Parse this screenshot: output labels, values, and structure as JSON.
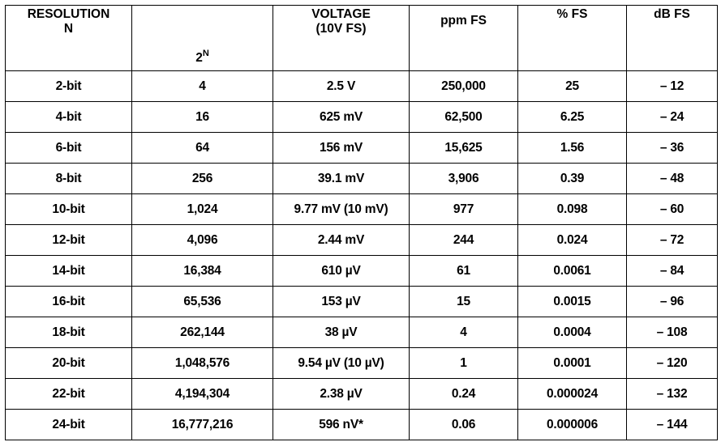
{
  "table": {
    "headers": {
      "resolution_line1": "RESOLUTION",
      "resolution_line2": "N",
      "power_base": "2",
      "power_exp": "N",
      "voltage_line1": "VOLTAGE",
      "voltage_line2": "(10V FS)",
      "ppm": "ppm FS",
      "pct": "% FS",
      "db": "dB FS"
    },
    "rows": [
      {
        "resolution": "2-bit",
        "power": "4",
        "voltage": "2.5 V",
        "ppm": "250,000",
        "pct": "25",
        "db": "– 12"
      },
      {
        "resolution": "4-bit",
        "power": "16",
        "voltage": "625 mV",
        "ppm": "62,500",
        "pct": "6.25",
        "db": "– 24"
      },
      {
        "resolution": "6-bit",
        "power": "64",
        "voltage": "156 mV",
        "ppm": "15,625",
        "pct": "1.56",
        "db": "– 36"
      },
      {
        "resolution": "8-bit",
        "power": "256",
        "voltage": "39.1 mV",
        "ppm": "3,906",
        "pct": "0.39",
        "db": "– 48"
      },
      {
        "resolution": "10-bit",
        "power": "1,024",
        "voltage": "9.77 mV (10 mV)",
        "ppm": "977",
        "pct": "0.098",
        "db": "– 60"
      },
      {
        "resolution": "12-bit",
        "power": "4,096",
        "voltage": "2.44 mV",
        "ppm": "244",
        "pct": "0.024",
        "db": "– 72"
      },
      {
        "resolution": "14-bit",
        "power": "16,384",
        "voltage": "610 µV",
        "ppm": "61",
        "pct": "0.0061",
        "db": "– 84"
      },
      {
        "resolution": "16-bit",
        "power": "65,536",
        "voltage": "153 µV",
        "ppm": "15",
        "pct": "0.0015",
        "db": "– 96"
      },
      {
        "resolution": "18-bit",
        "power": "262,144",
        "voltage": "38 µV",
        "ppm": "4",
        "pct": "0.0004",
        "db": "– 108"
      },
      {
        "resolution": "20-bit",
        "power": "1,048,576",
        "voltage": "9.54 µV (10 µV)",
        "ppm": "1",
        "pct": "0.0001",
        "db": "– 120"
      },
      {
        "resolution": "22-bit",
        "power": "4,194,304",
        "voltage": "2.38 µV",
        "ppm": "0.24",
        "pct": "0.000024",
        "db": "– 132"
      },
      {
        "resolution": "24-bit",
        "power": "16,777,216",
        "voltage": "596 nV*",
        "ppm": "0.06",
        "pct": "0.000006",
        "db": "– 144"
      }
    ]
  }
}
